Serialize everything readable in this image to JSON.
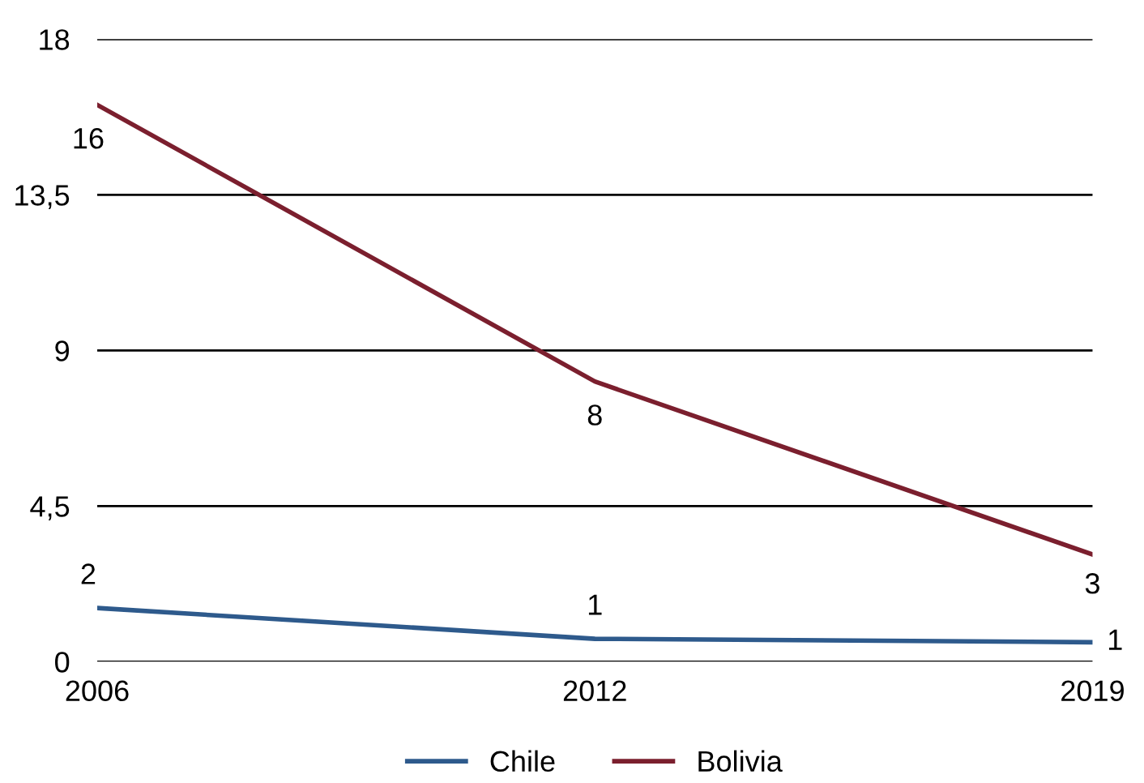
{
  "chart_data": {
    "type": "line",
    "categories": [
      "2006",
      "2012",
      "2019"
    ],
    "series": [
      {
        "name": "Chile",
        "color": "#2e5a8c",
        "values": [
          1.55,
          0.66,
          0.56
        ],
        "value_labels": [
          "2",
          "1",
          "1"
        ]
      },
      {
        "name": "Bolivia",
        "color": "#7b1f2e",
        "values": [
          16.1,
          8.1,
          3.1
        ],
        "value_labels": [
          "16",
          "8",
          "3"
        ]
      }
    ],
    "ylim": [
      0,
      18
    ],
    "yticks": [
      0,
      {
        "value": 4.5,
        "label": "4,5"
      },
      9,
      {
        "value": 13.5,
        "label": "13,5"
      },
      18
    ],
    "grid": "y",
    "legend": "bottom",
    "marker": "none",
    "line_style": "solid"
  }
}
